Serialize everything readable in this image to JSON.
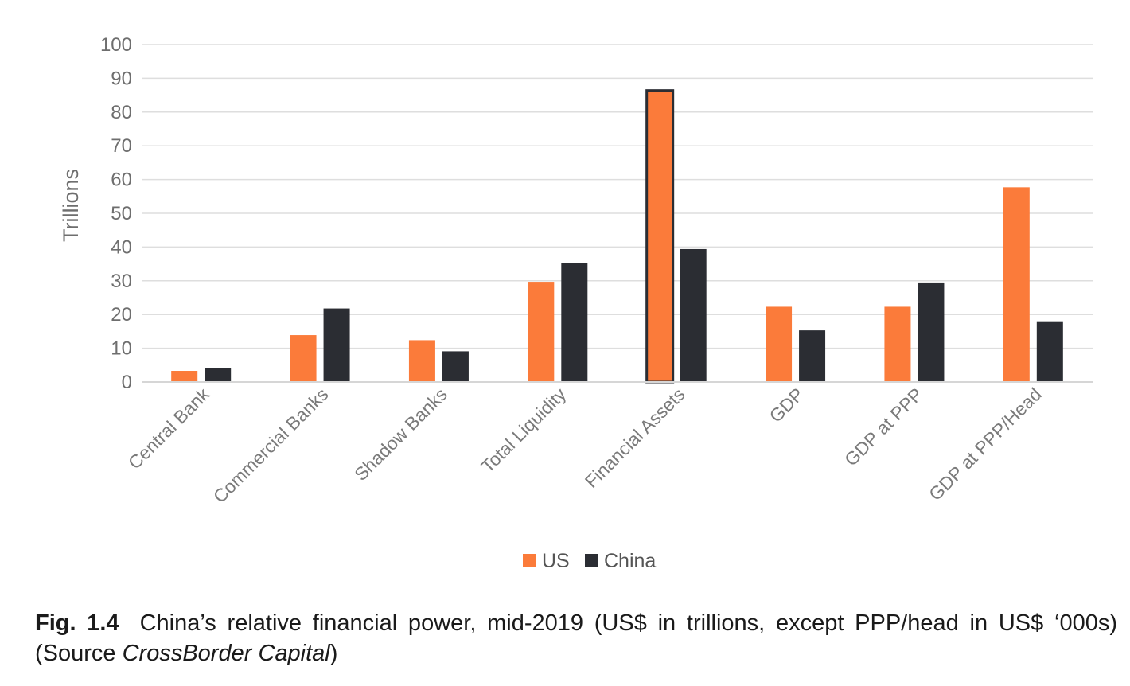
{
  "chart_data": {
    "type": "bar",
    "categories": [
      "Central Bank",
      "Commercial Banks",
      "Shadow Banks",
      "Total Liquidity",
      "Financial Assets",
      "GDP",
      "GDP at PPP",
      "GDP at PPP/Head"
    ],
    "series": [
      {
        "name": "US",
        "color": "#fb7b3a",
        "values": [
          3.3,
          13.9,
          12.4,
          29.7,
          86.4,
          22.3,
          22.3,
          57.7
        ]
      },
      {
        "name": "China",
        "color": "#2b2d33",
        "values": [
          4.1,
          21.8,
          9.1,
          35.3,
          39.4,
          15.3,
          29.5,
          18.0
        ]
      }
    ],
    "ylabel": "Trillions",
    "ylim": [
      0,
      100
    ],
    "yticks": [
      0,
      10,
      20,
      30,
      40,
      50,
      60,
      70,
      80,
      90,
      100
    ],
    "grid": true,
    "legend_position": "bottom"
  },
  "caption": {
    "fig_label": "Fig. 1.4",
    "text_before_source": "China’s relative financial power, mid-2019 (US$ in trillions, except PPP/head in US$ ‘000s) (Source ",
    "source_name": "CrossBorder Capital",
    "text_after_source": ")"
  }
}
